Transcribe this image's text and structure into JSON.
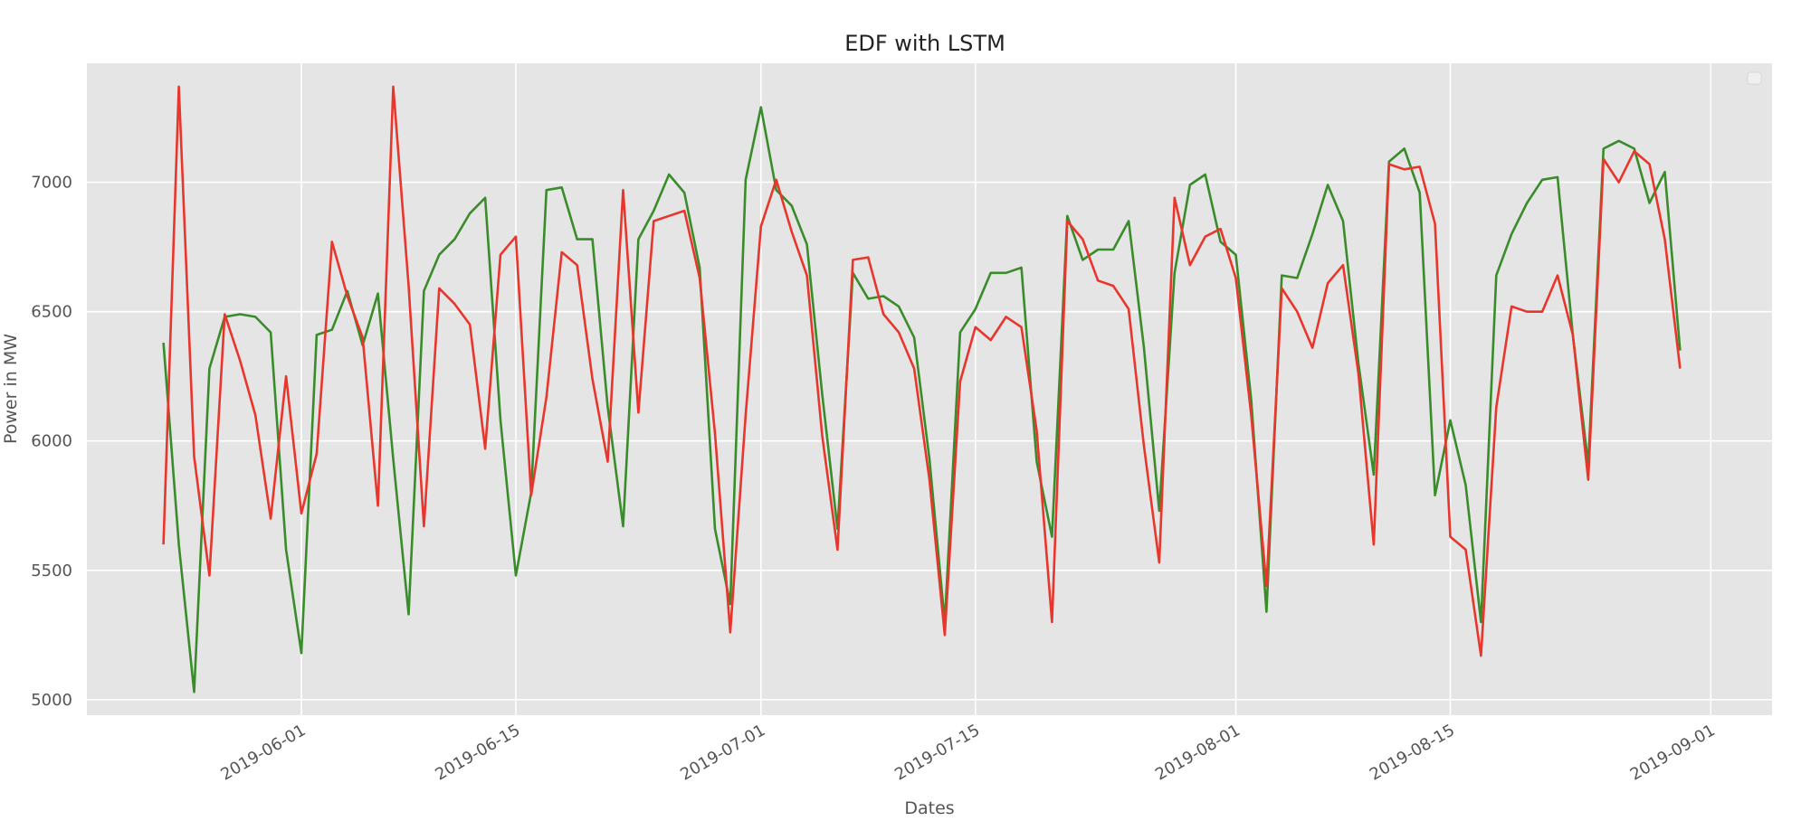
{
  "chart_data": {
    "type": "line",
    "title": "EDF with LSTM",
    "xlabel": "Dates",
    "ylabel": "Power in MW",
    "xlim": [
      "2019-05-18",
      "2019-09-05"
    ],
    "ylim": [
      4940,
      7460
    ],
    "x_ticks": [
      "2019-06-01",
      "2019-06-15",
      "2019-07-01",
      "2019-07-15",
      "2019-08-01",
      "2019-08-15",
      "2019-09-01"
    ],
    "y_ticks": [
      5000,
      5500,
      6000,
      6500,
      7000
    ],
    "grid": true,
    "legend": "top-right (empty)",
    "x_start": "2019-05-23",
    "series": [
      {
        "color": "#3a8c2b",
        "values": [
          6380,
          5600,
          5030,
          6280,
          6480,
          6490,
          6480,
          6420,
          5580,
          5180,
          6410,
          6430,
          6580,
          6370,
          6570,
          5930,
          5330,
          6580,
          6720,
          6780,
          6880,
          6940,
          6080,
          5480,
          5800,
          6970,
          6980,
          6780,
          6780,
          6130,
          5670,
          6780,
          6890,
          7030,
          6960,
          6670,
          5660,
          5370,
          7010,
          7290,
          6970,
          6910,
          6760,
          6180,
          5660,
          6650,
          6550,
          6560,
          6520,
          6400,
          5930,
          5300,
          6420,
          6510,
          6650,
          6650,
          6670,
          5920,
          5630,
          6870,
          6700,
          6740,
          6740,
          6850,
          6360,
          5730,
          6650,
          6990,
          7030,
          6770,
          6720,
          6160,
          5340,
          6640,
          6630,
          6800,
          6990,
          6850,
          6300,
          5870,
          7080,
          7130,
          6960,
          5790,
          6080,
          5830,
          5300,
          6640,
          6800,
          6920,
          7010,
          7020,
          6410,
          5910,
          7130,
          7160,
          7130,
          6920,
          7040,
          6350
        ]
      },
      {
        "color": "#e8362d",
        "values": [
          5600,
          7370,
          5940,
          5480,
          6490,
          6310,
          6100,
          5700,
          6250,
          5720,
          5950,
          6770,
          6560,
          6400,
          5750,
          7370,
          6600,
          5670,
          6590,
          6530,
          6450,
          5970,
          6720,
          6790,
          5790,
          6170,
          6730,
          6680,
          6240,
          5920,
          6970,
          6110,
          6850,
          6870,
          6890,
          6630,
          6030,
          5260,
          6100,
          6830,
          7010,
          6810,
          6640,
          6020,
          5580,
          6700,
          6710,
          6490,
          6420,
          6280,
          5850,
          5250,
          6230,
          6440,
          6390,
          6480,
          6440,
          6040,
          5300,
          6850,
          6780,
          6620,
          6600,
          6510,
          5980,
          5530,
          6940,
          6680,
          6790,
          6820,
          6630,
          6100,
          5440,
          6590,
          6500,
          6360,
          6610,
          6680,
          6260,
          5600,
          7070,
          7050,
          7060,
          6840,
          5630,
          5580,
          5170,
          6130,
          6520,
          6500,
          6500,
          6640,
          6410,
          5850,
          7090,
          7000,
          7120,
          7070,
          6780,
          6280
        ]
      }
    ]
  }
}
